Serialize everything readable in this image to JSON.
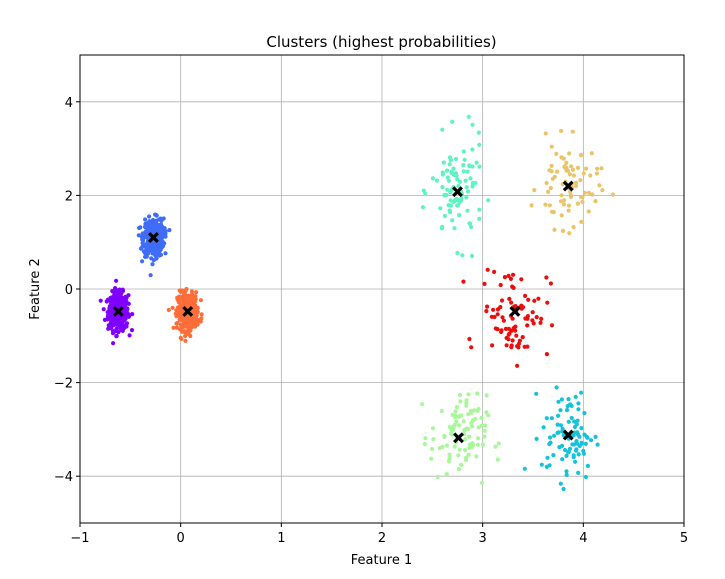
{
  "chart_data": {
    "type": "scatter",
    "title": "Clusters (highest probabilities)",
    "xlabel": "Feature 1",
    "ylabel": "Feature 2",
    "xlim": [
      -1,
      5
    ],
    "ylim": [
      -5,
      5
    ],
    "xticks": [
      -1,
      0,
      1,
      2,
      3,
      4,
      5
    ],
    "yticks": [
      -4,
      -2,
      0,
      2,
      4
    ],
    "ytick_labels": [
      "−4",
      "−2",
      "0",
      "2",
      "4"
    ],
    "xtick_labels": [
      "−1",
      "0",
      "1",
      "2",
      "3",
      "4",
      "5"
    ],
    "grid": true,
    "clusters": [
      {
        "color": "#7f00ff",
        "center": [
          -0.62,
          -0.48
        ],
        "spread": [
          0.05,
          0.2
        ],
        "count": 420
      },
      {
        "color": "#3f6cf8",
        "center": [
          -0.27,
          1.1
        ],
        "spread": [
          0.05,
          0.2
        ],
        "count": 420
      },
      {
        "color": "#ff6d39",
        "center": [
          0.07,
          -0.48
        ],
        "spread": [
          0.05,
          0.2
        ],
        "count": 380
      },
      {
        "color": "#5ef3c1",
        "center": [
          2.75,
          2.08
        ],
        "spread": [
          0.13,
          0.55
        ],
        "count": 95
      },
      {
        "color": "#eac36a",
        "center": [
          3.85,
          2.2
        ],
        "spread": [
          0.15,
          0.45
        ],
        "count": 80
      },
      {
        "color": "#ec0d0d",
        "center": [
          3.32,
          -0.48
        ],
        "spread": [
          0.17,
          0.5
        ],
        "count": 85
      },
      {
        "color": "#a8f89a",
        "center": [
          2.76,
          -3.18
        ],
        "spread": [
          0.14,
          0.45
        ],
        "count": 95
      },
      {
        "color": "#14c2dc",
        "center": [
          3.85,
          -3.12
        ],
        "spread": [
          0.13,
          0.48
        ],
        "count": 90
      }
    ],
    "centroid_marker": {
      "color": "#000000",
      "shape": "X"
    }
  }
}
